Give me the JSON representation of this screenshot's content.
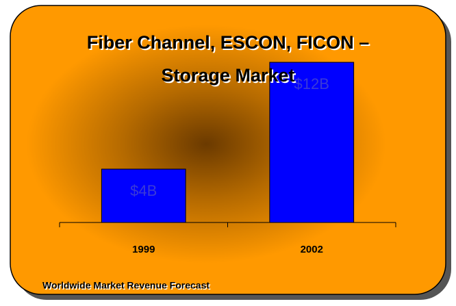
{
  "chart_data": {
    "type": "bar",
    "title": "Fiber Channel, ESCON, FICON – Storage Market",
    "footnote": "Worldwide Market Revenue Forecast",
    "categories": [
      "1999",
      "2002"
    ],
    "values": [
      4,
      12
    ],
    "value_labels": [
      "$4B",
      "$12B"
    ],
    "color": "#0000ff",
    "ylim": [
      0,
      12
    ]
  }
}
